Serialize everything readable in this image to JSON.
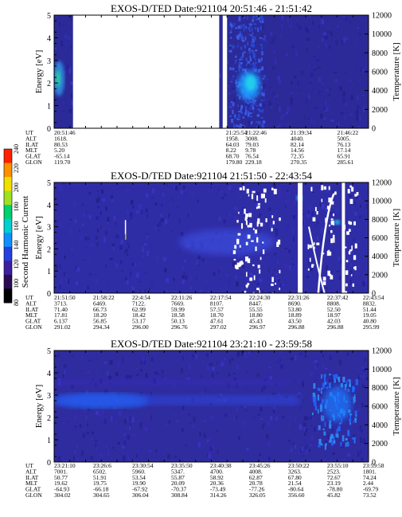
{
  "chart_data": [
    {
      "type": "heatmap",
      "title": "EXOS-D/TED   Date:921104   20:51:46 - 21:51:42",
      "ylabel": "Energy [eV]",
      "y2label": "Temperature [K]",
      "ylim": [
        0,
        5
      ],
      "y2lim": [
        0,
        12000
      ],
      "yticks": [
        "0",
        "1",
        "2",
        "3",
        "4",
        "5"
      ],
      "y2ticks": [
        "0",
        "2000",
        "4000",
        "6000",
        "8000",
        "10000",
        "12000"
      ],
      "gaps": [
        [
          0.06,
          0.525
        ],
        [
          0.532,
          0.55
        ]
      ],
      "intense_regions": [
        {
          "x": [
            0.0,
            0.035
          ],
          "y": [
            1.5,
            3.0
          ],
          "level": "green"
        },
        {
          "x": [
            0.555,
            0.66
          ],
          "y": [
            1.2,
            3.0
          ],
          "level": "cyan"
        }
      ],
      "ephemeris": {
        "labels": [
          "UT",
          "ALT",
          "ILAT",
          "MLT",
          "GLAT",
          "GLON"
        ],
        "columns": [
          [
            "20:51:46",
            "1618.",
            "80.53",
            "5.20",
            "-65.14",
            "119.70"
          ],
          [
            "21:25:54",
            "1958.",
            "64.03",
            "8.22",
            "68.70",
            "179.80"
          ],
          [
            "21:22:46",
            "3008.",
            "79.03",
            "9.78",
            "76.54",
            "229.18"
          ],
          [
            "21:39:34",
            "4040.",
            "82.14",
            "14.56",
            "72.35",
            "270.35"
          ],
          [
            "21:46:22",
            "5005.",
            "76.13",
            "17.14",
            "65.91",
            "285.61"
          ]
        ]
      }
    },
    {
      "type": "heatmap",
      "title": "EXOS-D/TED   Date:921104   21:51:50 - 22:43:54",
      "ylabel": "Energy [eV]",
      "y2label": "Temperature [K]",
      "ylim": [
        0,
        5
      ],
      "y2lim": [
        0,
        12000
      ],
      "yticks": [
        "0",
        "1",
        "2",
        "3",
        "4",
        "5"
      ],
      "y2ticks": [
        "0",
        "2000",
        "4000",
        "6000",
        "8000",
        "10000",
        "12000"
      ],
      "gaps": [
        [
          0.775,
          0.79
        ],
        [
          0.915,
          0.925
        ]
      ],
      "colorbar": {
        "label": "Second Harmonic Current",
        "ticks": [
          "80",
          "100",
          "120",
          "140",
          "160",
          "180",
          "200",
          "220",
          "240"
        ],
        "colors": [
          "#000000",
          "#2a0a55",
          "#3a1fa0",
          "#2540e0",
          "#1090ff",
          "#00d0d0",
          "#00d070",
          "#a0e020",
          "#f0e000",
          "#ff9000",
          "#ff2000"
        ]
      },
      "ephemeris": {
        "labels": [
          "UT",
          "ALT",
          "ILAT",
          "MLT",
          "GLAT",
          "GLON"
        ],
        "columns": [
          [
            "21:51:50",
            "3713.",
            "71.40",
            "17.81",
            "6.137",
            "291.02"
          ],
          [
            "21:58:22",
            "6469.",
            "66.73",
            "18.20",
            "56.85",
            "294.34"
          ],
          [
            "22:4:54",
            "7122.",
            "62.99",
            "18.42",
            "53.17",
            "296.00"
          ],
          [
            "22:11:26",
            "7669.",
            "59.99",
            "18.58",
            "50.13",
            "296.76"
          ],
          [
            "22:17:54",
            "8107.",
            "57.57",
            "18.70",
            "47.61",
            "297.02"
          ],
          [
            "22:24:30",
            "8447.",
            "55.55",
            "18.80",
            "45.43",
            "296.97"
          ],
          [
            "22:31:26",
            "8690.",
            "53.80",
            "18.89",
            "43.50",
            "296.88"
          ],
          [
            "22:37:42",
            "8808.",
            "52.50",
            "18.97",
            "42.03",
            "296.88"
          ],
          [
            "22:43:54",
            "8832.",
            "51.44",
            "19.05",
            "40.80",
            "295.99"
          ]
        ]
      }
    },
    {
      "type": "heatmap",
      "title": "EXOS-D/TED   Date:921104   23:21:10 - 23:59:58",
      "ylabel": "Energy [eV]",
      "y2label": "Temperature [K]",
      "ylim": [
        0,
        5
      ],
      "y2lim": [
        0,
        12000
      ],
      "yticks": [
        "0",
        "1",
        "2",
        "3",
        "4",
        "5"
      ],
      "y2ticks": [
        "0",
        "2000",
        "4000",
        "6000",
        "8000",
        "10000",
        "12000"
      ],
      "gaps": [],
      "ephemeris": {
        "labels": [
          "UT",
          "ALT",
          "ILAT",
          "MLT",
          "GLAT",
          "GLON"
        ],
        "columns": [
          [
            "23:21:10",
            "7001.",
            "50.77",
            "19.62",
            "-64.93",
            "304.02"
          ],
          [
            "23:26:6",
            "6502.",
            "51.91",
            "19.75",
            "-66.18",
            "304.65"
          ],
          [
            "23:30:54",
            "5960.",
            "53.54",
            "19.90",
            "-67.92",
            "306.04"
          ],
          [
            "23:35:50",
            "5347.",
            "55.87",
            "20.09",
            "-70.37",
            "308.84"
          ],
          [
            "23:40:38",
            "4700.",
            "58.92",
            "20.36",
            "-73.49",
            "314.26"
          ],
          [
            "23:45:26",
            "4008.",
            "62.87",
            "20.78",
            "-77.26",
            "326.05"
          ],
          [
            "23:50:22",
            "3263.",
            "67.80",
            "21.54",
            "-80.64",
            "356.60"
          ],
          [
            "23:55:10",
            "2523.",
            "72.67",
            "23.19",
            "-78.80",
            "45.82"
          ],
          [
            "23:59:58",
            "1801.",
            "74.24",
            "2.44",
            "-69.79",
            "73.52"
          ]
        ]
      }
    }
  ]
}
